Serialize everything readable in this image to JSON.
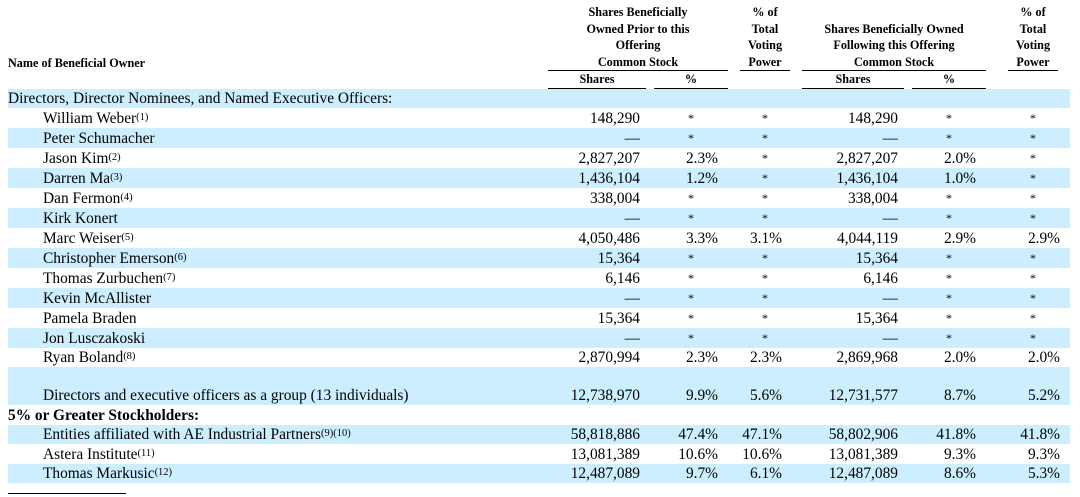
{
  "header": {
    "name_col": "Name of Beneficial Owner",
    "prior_group": "Shares Beneficially Owned Prior to this Offering",
    "prior_sub": "Common Stock",
    "following_group": "Shares Beneficially Owned Following this Offering",
    "following_sub": "Common Stock",
    "shares": "Shares",
    "pct": "%",
    "voting": "% of Total Voting Power"
  },
  "sections": [
    {
      "title": "Directors, Director Nominees, and Named Executive Officers:",
      "bold": false,
      "rows": [
        {
          "name": "William Weber",
          "note": "(1)",
          "prior_shares": "148,290",
          "prior_pct": "*",
          "prior_vote": "*",
          "after_shares": "148,290",
          "after_pct": "*",
          "after_vote": "*"
        },
        {
          "name": "Peter Schumacher",
          "note": "",
          "prior_shares": "—",
          "prior_pct": "*",
          "prior_vote": "*",
          "after_shares": "—",
          "after_pct": "*",
          "after_vote": "*"
        },
        {
          "name": "Jason Kim",
          "note": "(2)",
          "prior_shares": "2,827,207",
          "prior_pct": "2.3%",
          "prior_vote": "*",
          "after_shares": "2,827,207",
          "after_pct": "2.0%",
          "after_vote": "*"
        },
        {
          "name": "Darren Ma",
          "note": "(3)",
          "prior_shares": "1,436,104",
          "prior_pct": "1.2%",
          "prior_vote": "*",
          "after_shares": "1,436,104",
          "after_pct": "1.0%",
          "after_vote": "*"
        },
        {
          "name": "Dan Fermon",
          "note": "(4)",
          "prior_shares": "338,004",
          "prior_pct": "*",
          "prior_vote": "*",
          "after_shares": "338,004",
          "after_pct": "*",
          "after_vote": "*"
        },
        {
          "name": "Kirk Konert",
          "note": "",
          "prior_shares": "—",
          "prior_pct": "*",
          "prior_vote": "*",
          "after_shares": "—",
          "after_pct": "*",
          "after_vote": "*"
        },
        {
          "name": "Marc Weiser",
          "note": "(5)",
          "prior_shares": "4,050,486",
          "prior_pct": "3.3%",
          "prior_vote": "3.1%",
          "after_shares": "4,044,119",
          "after_pct": "2.9%",
          "after_vote": "2.9%"
        },
        {
          "name": "Christopher Emerson",
          "note": "(6)",
          "prior_shares": "15,364",
          "prior_pct": "*",
          "prior_vote": "*",
          "after_shares": "15,364",
          "after_pct": "*",
          "after_vote": "*"
        },
        {
          "name": "Thomas Zurbuchen",
          "note": "(7)",
          "prior_shares": "6,146",
          "prior_pct": "*",
          "prior_vote": "*",
          "after_shares": "6,146",
          "after_pct": "*",
          "after_vote": "*"
        },
        {
          "name": "Kevin McAllister",
          "note": "",
          "prior_shares": "—",
          "prior_pct": "*",
          "prior_vote": "*",
          "after_shares": "—",
          "after_pct": "*",
          "after_vote": "*"
        },
        {
          "name": "Pamela Braden",
          "note": "",
          "prior_shares": "15,364",
          "prior_pct": "*",
          "prior_vote": "*",
          "after_shares": "15,364",
          "after_pct": "*",
          "after_vote": "*"
        },
        {
          "name": "Jon Lusczakoski",
          "note": "",
          "prior_shares": "—",
          "prior_pct": "*",
          "prior_vote": "*",
          "after_shares": "—",
          "after_pct": "*",
          "after_vote": "*"
        },
        {
          "name": "Ryan Boland",
          "note": "(8)",
          "prior_shares": "2,870,994",
          "prior_pct": "2.3%",
          "prior_vote": "2.3%",
          "after_shares": "2,869,968",
          "after_pct": "2.0%",
          "after_vote": "2.0%"
        },
        {
          "name": "Directors and executive officers as a group (13 individuals)",
          "note": "",
          "tall": true,
          "prior_shares": "12,738,970",
          "prior_pct": "9.9%",
          "prior_vote": "5.6%",
          "after_shares": "12,731,577",
          "after_pct": "8.7%",
          "after_vote": "5.2%"
        }
      ]
    },
    {
      "title": "5% or Greater Stockholders:",
      "bold": true,
      "rows": [
        {
          "name": "Entities affiliated with AE Industrial Partners",
          "note": "(9)(10)",
          "prior_shares": "58,818,886",
          "prior_pct": "47.4%",
          "prior_vote": "47.1%",
          "after_shares": "58,802,906",
          "after_pct": "41.8%",
          "after_vote": "41.8%"
        },
        {
          "name": "Astera Institute",
          "note": "(11)",
          "prior_shares": "13,081,389",
          "prior_pct": "10.6%",
          "prior_vote": "10.6%",
          "after_shares": "13,081,389",
          "after_pct": "9.3%",
          "after_vote": "9.3%"
        },
        {
          "name": "Thomas Markusic",
          "note": "(12)",
          "prior_shares": "12,487,089",
          "prior_pct": "9.7%",
          "prior_vote": "6.1%",
          "after_shares": "12,487,089",
          "after_pct": "8.6%",
          "after_vote": "5.3%"
        }
      ]
    }
  ]
}
